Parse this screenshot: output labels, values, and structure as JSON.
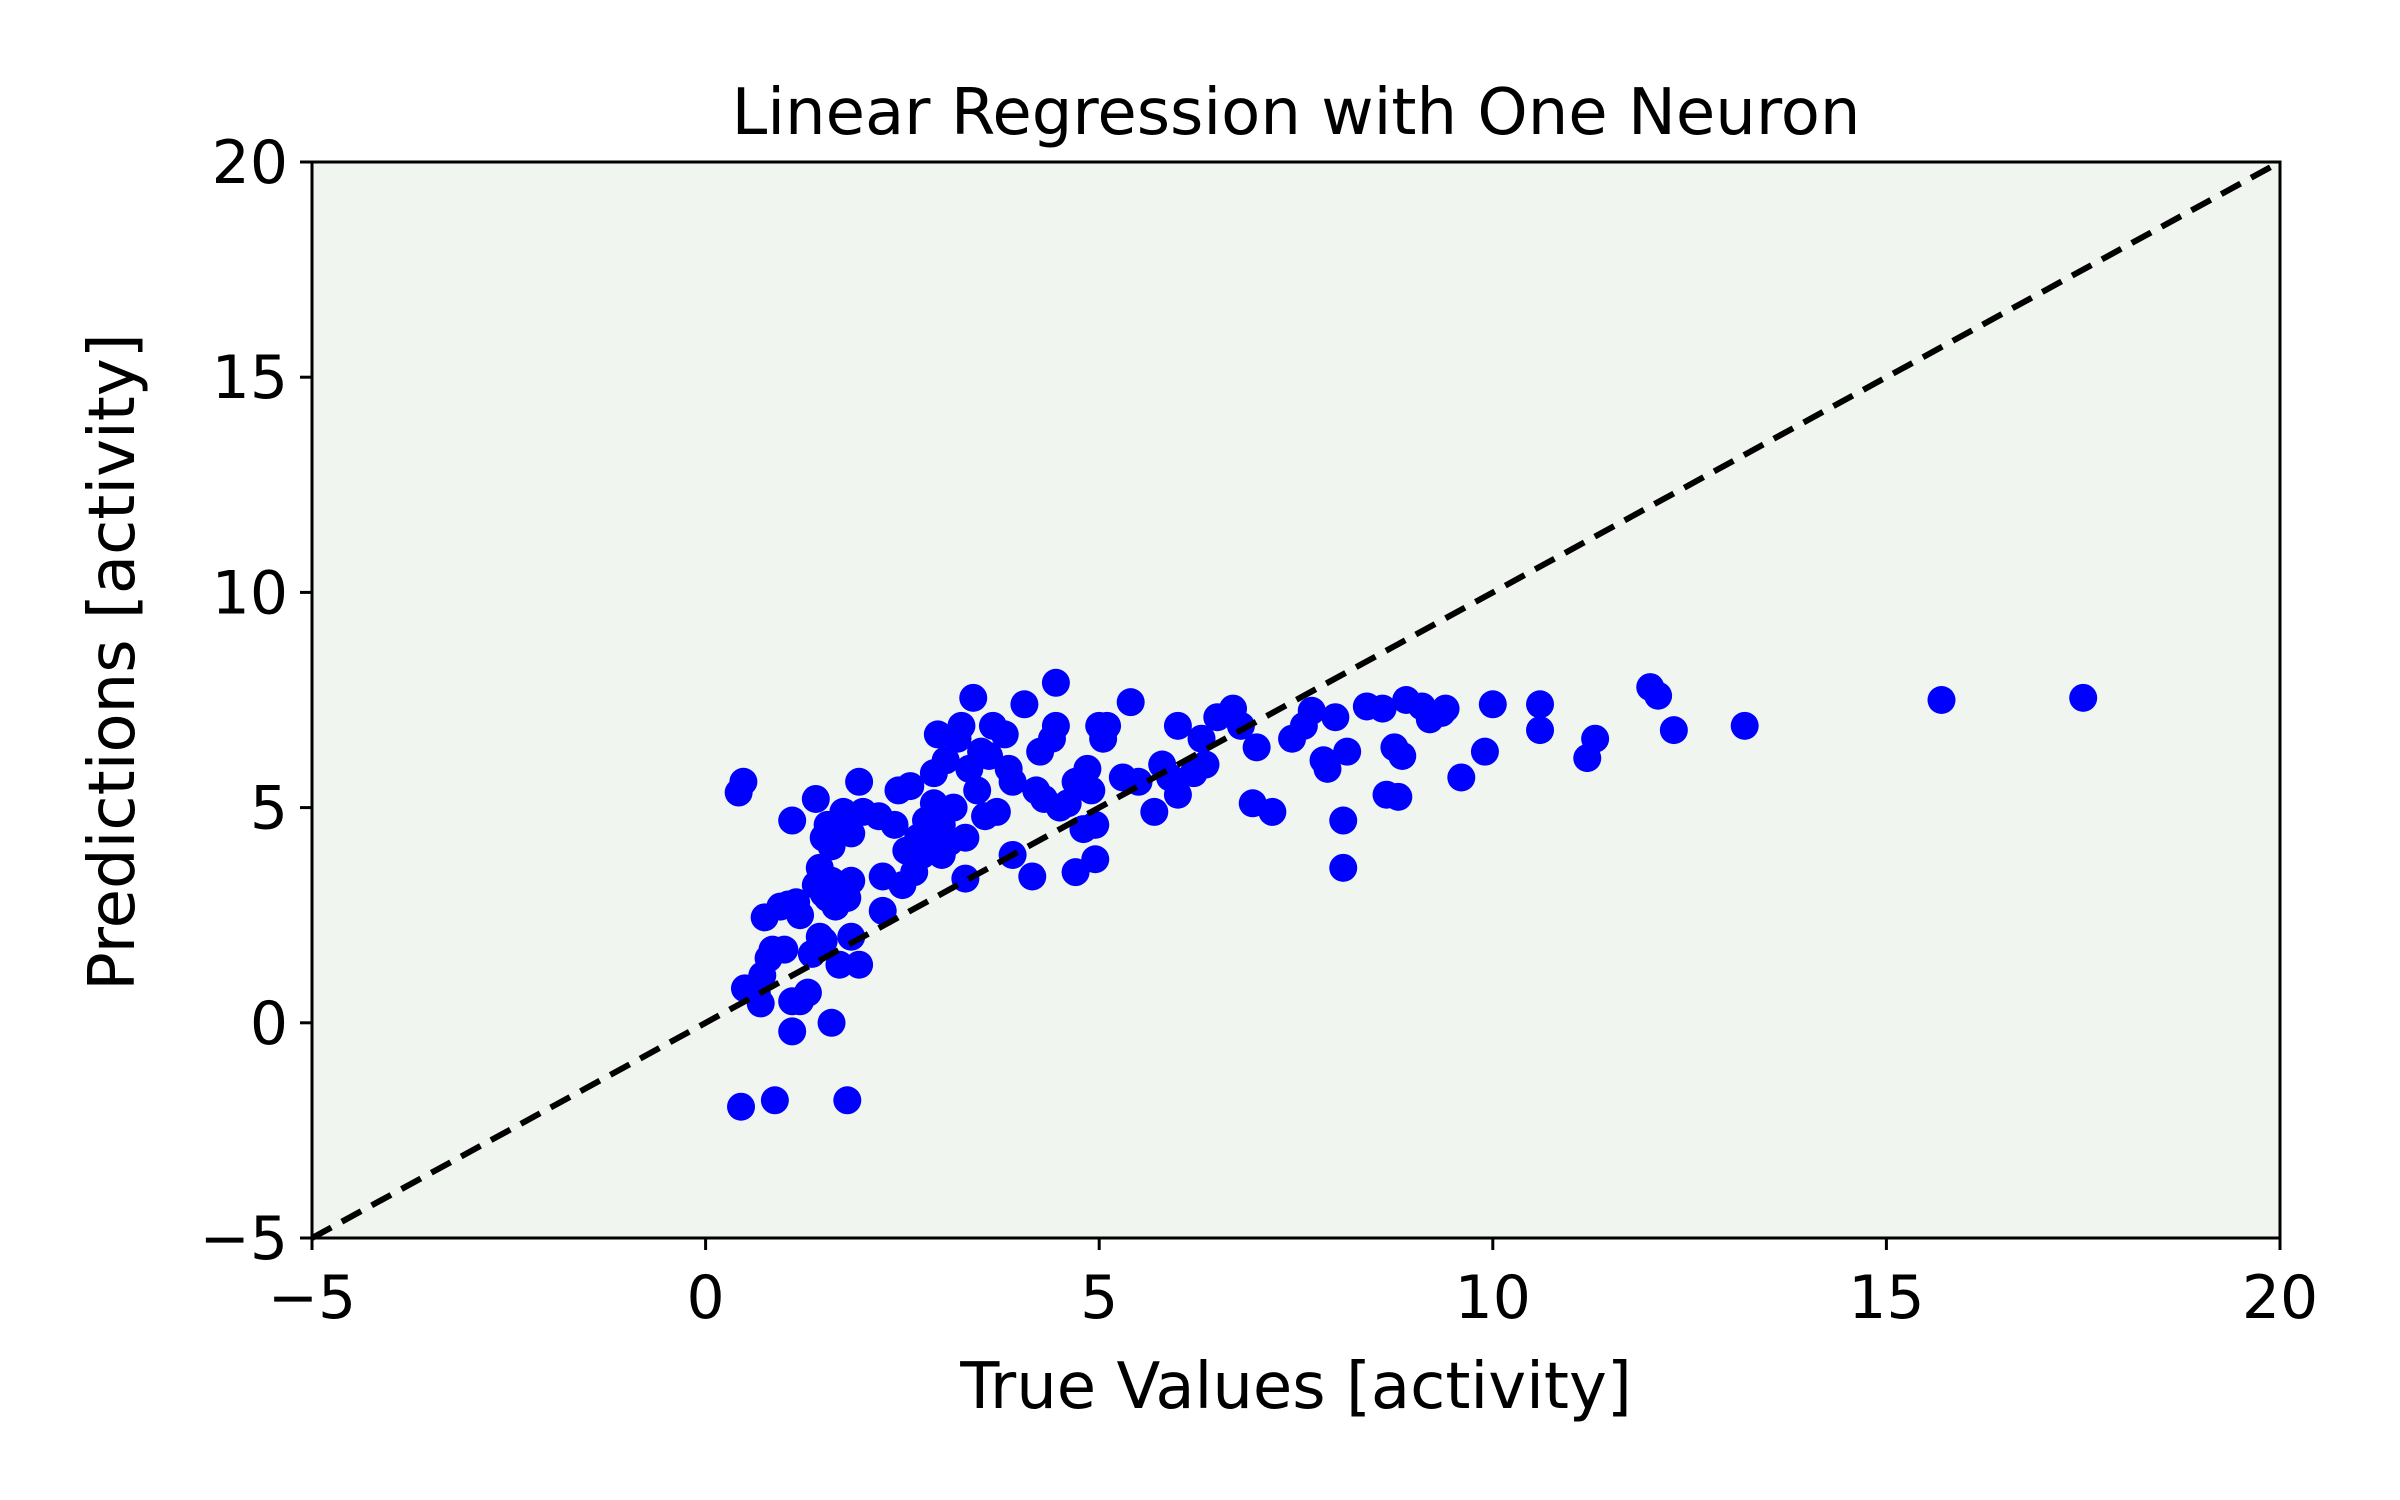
{
  "chart_data": {
    "type": "scatter",
    "title": "Linear Regression with One Neuron",
    "xlabel": "True Values [activity]",
    "ylabel": "Predictions [activity]",
    "xlim": [
      -5,
      20
    ],
    "ylim": [
      -5,
      20
    ],
    "xticks": [
      -5,
      0,
      5,
      10,
      15,
      20
    ],
    "yticks": [
      -5,
      0,
      5,
      10,
      15,
      20
    ],
    "xtick_labels": [
      "−5",
      "0",
      "5",
      "10",
      "15",
      "20"
    ],
    "ytick_labels": [
      "−5",
      "0",
      "5",
      "10",
      "15",
      "20"
    ],
    "grid": false,
    "plot_background": "#f0f5ef",
    "point_color": "#0000ff",
    "line_color": "#000000",
    "reference_line": {
      "style": "dashed",
      "x": [
        -5,
        20
      ],
      "y": [
        -5,
        20
      ]
    },
    "points": [
      [
        0.42,
        5.35
      ],
      [
        0.48,
        5.6
      ],
      [
        0.45,
        -1.95
      ],
      [
        0.88,
        -1.8
      ],
      [
        1.1,
        -0.2
      ],
      [
        1.6,
        0.0
      ],
      [
        1.8,
        -1.8
      ],
      [
        0.5,
        0.8
      ],
      [
        0.65,
        0.7
      ],
      [
        0.7,
        0.45
      ],
      [
        0.72,
        1.1
      ],
      [
        0.8,
        1.5
      ],
      [
        0.85,
        1.7
      ],
      [
        1.0,
        1.7
      ],
      [
        1.1,
        0.5
      ],
      [
        1.2,
        0.5
      ],
      [
        1.3,
        0.7
      ],
      [
        1.35,
        1.6
      ],
      [
        1.45,
        2.0
      ],
      [
        1.5,
        1.9
      ],
      [
        1.7,
        1.35
      ],
      [
        1.95,
        1.35
      ],
      [
        1.85,
        2.0
      ],
      [
        0.75,
        2.45
      ],
      [
        0.95,
        2.7
      ],
      [
        1.05,
        2.75
      ],
      [
        1.15,
        2.8
      ],
      [
        1.2,
        2.5
      ],
      [
        1.4,
        3.2
      ],
      [
        1.45,
        3.6
      ],
      [
        1.5,
        3.0
      ],
      [
        1.55,
        2.9
      ],
      [
        1.6,
        3.3
      ],
      [
        1.65,
        2.7
      ],
      [
        1.7,
        3.2
      ],
      [
        1.8,
        2.9
      ],
      [
        1.85,
        3.3
      ],
      [
        1.1,
        4.7
      ],
      [
        1.4,
        5.2
      ],
      [
        1.5,
        4.3
      ],
      [
        1.55,
        4.6
      ],
      [
        1.6,
        4.1
      ],
      [
        1.75,
        4.9
      ],
      [
        1.85,
        4.4
      ],
      [
        1.95,
        5.6
      ],
      [
        2.0,
        4.9
      ],
      [
        2.2,
        4.8
      ],
      [
        2.25,
        3.4
      ],
      [
        2.25,
        2.6
      ],
      [
        2.4,
        4.6
      ],
      [
        2.45,
        5.4
      ],
      [
        2.5,
        3.2
      ],
      [
        2.55,
        4.0
      ],
      [
        2.6,
        5.5
      ],
      [
        2.65,
        3.5
      ],
      [
        2.7,
        4.3
      ],
      [
        2.75,
        3.9
      ],
      [
        2.8,
        4.7
      ],
      [
        2.85,
        4.1
      ],
      [
        2.9,
        5.1
      ],
      [
        2.9,
        5.8
      ],
      [
        2.95,
        6.7
      ],
      [
        3.0,
        4.6
      ],
      [
        3.0,
        3.9
      ],
      [
        3.05,
        6.1
      ],
      [
        3.1,
        4.2
      ],
      [
        3.15,
        5.0
      ],
      [
        3.2,
        6.6
      ],
      [
        3.25,
        6.9
      ],
      [
        3.3,
        4.3
      ],
      [
        3.3,
        3.35
      ],
      [
        3.35,
        5.9
      ],
      [
        3.4,
        7.55
      ],
      [
        3.45,
        5.4
      ],
      [
        3.5,
        6.3
      ],
      [
        3.55,
        4.8
      ],
      [
        3.6,
        6.2
      ],
      [
        3.65,
        6.9
      ],
      [
        3.7,
        4.9
      ],
      [
        3.8,
        6.7
      ],
      [
        3.85,
        5.9
      ],
      [
        3.9,
        5.6
      ],
      [
        3.9,
        3.9
      ],
      [
        4.05,
        7.4
      ],
      [
        4.15,
        3.4
      ],
      [
        4.2,
        5.4
      ],
      [
        4.25,
        6.3
      ],
      [
        4.3,
        5.2
      ],
      [
        4.4,
        6.6
      ],
      [
        4.45,
        6.9
      ],
      [
        4.45,
        7.9
      ],
      [
        4.5,
        5.0
      ],
      [
        4.6,
        5.1
      ],
      [
        4.7,
        5.6
      ],
      [
        4.7,
        3.5
      ],
      [
        4.8,
        4.5
      ],
      [
        4.85,
        5.9
      ],
      [
        4.9,
        5.4
      ],
      [
        4.95,
        4.6
      ],
      [
        4.95,
        3.8
      ],
      [
        5.0,
        6.9
      ],
      [
        5.05,
        6.6
      ],
      [
        5.1,
        6.9
      ],
      [
        5.3,
        5.7
      ],
      [
        5.4,
        7.45
      ],
      [
        5.5,
        5.6
      ],
      [
        5.7,
        4.9
      ],
      [
        5.8,
        6.0
      ],
      [
        5.9,
        5.7
      ],
      [
        6.0,
        5.3
      ],
      [
        6.0,
        6.9
      ],
      [
        6.2,
        5.8
      ],
      [
        6.3,
        6.6
      ],
      [
        6.35,
        6.0
      ],
      [
        6.5,
        7.1
      ],
      [
        6.7,
        7.3
      ],
      [
        6.8,
        6.9
      ],
      [
        7.0,
        6.4
      ],
      [
        6.95,
        5.1
      ],
      [
        7.2,
        4.9
      ],
      [
        7.45,
        6.6
      ],
      [
        7.6,
        6.9
      ],
      [
        7.7,
        7.25
      ],
      [
        7.85,
        6.1
      ],
      [
        7.9,
        5.9
      ],
      [
        8.0,
        7.1
      ],
      [
        8.1,
        4.7
      ],
      [
        8.1,
        3.6
      ],
      [
        8.15,
        6.3
      ],
      [
        8.4,
        7.35
      ],
      [
        8.6,
        7.3
      ],
      [
        8.65,
        5.3
      ],
      [
        8.75,
        6.4
      ],
      [
        8.8,
        5.25
      ],
      [
        8.85,
        6.2
      ],
      [
        8.9,
        7.5
      ],
      [
        9.1,
        7.35
      ],
      [
        9.2,
        7.05
      ],
      [
        9.35,
        7.2
      ],
      [
        9.4,
        7.3
      ],
      [
        9.6,
        5.7
      ],
      [
        9.9,
        6.3
      ],
      [
        10.0,
        7.4
      ],
      [
        10.6,
        7.4
      ],
      [
        10.6,
        6.8
      ],
      [
        11.2,
        6.15
      ],
      [
        11.3,
        6.6
      ],
      [
        12.0,
        7.8
      ],
      [
        12.1,
        7.6
      ],
      [
        12.3,
        6.8
      ],
      [
        13.2,
        6.9
      ],
      [
        15.7,
        7.5
      ],
      [
        17.5,
        7.55
      ]
    ]
  }
}
